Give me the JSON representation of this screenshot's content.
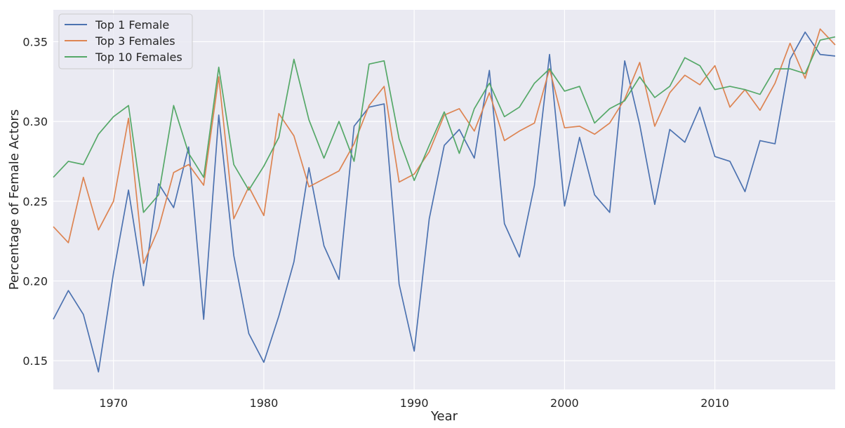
{
  "chart_data": {
    "type": "line",
    "xlabel": "Year",
    "ylabel": "Percentage of Female Actors",
    "xlim": [
      1966,
      2018
    ],
    "ylim": [
      0.132,
      0.37
    ],
    "x_ticks": [
      1970,
      1980,
      1990,
      2000,
      2010
    ],
    "y_ticks": [
      0.15,
      0.2,
      0.25,
      0.3,
      0.35
    ],
    "y_tick_labels": [
      "0.15",
      "0.20",
      "0.25",
      "0.30",
      "0.35"
    ],
    "grid": true,
    "legend_position": "top-left",
    "x": [
      1966,
      1967,
      1968,
      1969,
      1970,
      1971,
      1972,
      1973,
      1974,
      1975,
      1976,
      1977,
      1978,
      1979,
      1980,
      1981,
      1982,
      1983,
      1984,
      1985,
      1986,
      1987,
      1988,
      1989,
      1990,
      1991,
      1992,
      1993,
      1994,
      1995,
      1996,
      1997,
      1998,
      1999,
      2000,
      2001,
      2002,
      2003,
      2004,
      2005,
      2006,
      2007,
      2008,
      2009,
      2010,
      2011,
      2012,
      2013,
      2014,
      2015,
      2016,
      2017,
      2018
    ],
    "series": [
      {
        "name": "Top 1 Female",
        "color": "#4c72b0",
        "values": [
          0.176,
          0.194,
          0.179,
          0.143,
          0.205,
          0.257,
          0.197,
          0.261,
          0.246,
          0.284,
          0.176,
          0.304,
          0.216,
          0.167,
          0.149,
          0.178,
          0.212,
          0.271,
          0.222,
          0.201,
          0.297,
          0.309,
          0.311,
          0.198,
          0.156,
          0.239,
          0.285,
          0.295,
          0.277,
          0.332,
          0.236,
          0.215,
          0.26,
          0.342,
          0.247,
          0.29,
          0.254,
          0.243,
          0.338,
          0.298,
          0.248,
          0.295,
          0.287,
          0.309,
          0.278,
          0.275,
          0.256,
          0.288,
          0.286,
          0.339,
          0.356,
          0.342,
          0.341
        ]
      },
      {
        "name": "Top 3 Females",
        "color": "#dd8452",
        "values": [
          0.234,
          0.224,
          0.265,
          0.232,
          0.25,
          0.302,
          0.211,
          0.233,
          0.268,
          0.273,
          0.26,
          0.328,
          0.239,
          0.259,
          0.241,
          0.305,
          0.291,
          0.259,
          0.264,
          0.269,
          0.286,
          0.31,
          0.322,
          0.262,
          0.267,
          0.281,
          0.304,
          0.308,
          0.294,
          0.318,
          0.288,
          0.294,
          0.299,
          0.333,
          0.296,
          0.297,
          0.292,
          0.299,
          0.314,
          0.337,
          0.297,
          0.318,
          0.329,
          0.323,
          0.335,
          0.309,
          0.32,
          0.307,
          0.324,
          0.349,
          0.327,
          0.358,
          0.348
        ]
      },
      {
        "name": "Top 10 Females",
        "color": "#55a868",
        "values": [
          0.265,
          0.275,
          0.273,
          0.292,
          0.303,
          0.31,
          0.243,
          0.254,
          0.31,
          0.28,
          0.265,
          0.334,
          0.273,
          0.257,
          0.272,
          0.29,
          0.339,
          0.301,
          0.277,
          0.3,
          0.275,
          0.336,
          0.338,
          0.289,
          0.263,
          0.285,
          0.306,
          0.28,
          0.308,
          0.324,
          0.303,
          0.309,
          0.324,
          0.333,
          0.319,
          0.322,
          0.299,
          0.308,
          0.313,
          0.328,
          0.315,
          0.322,
          0.34,
          0.335,
          0.32,
          0.322,
          0.32,
          0.317,
          0.333,
          0.333,
          0.33,
          0.351,
          0.353
        ]
      }
    ]
  }
}
